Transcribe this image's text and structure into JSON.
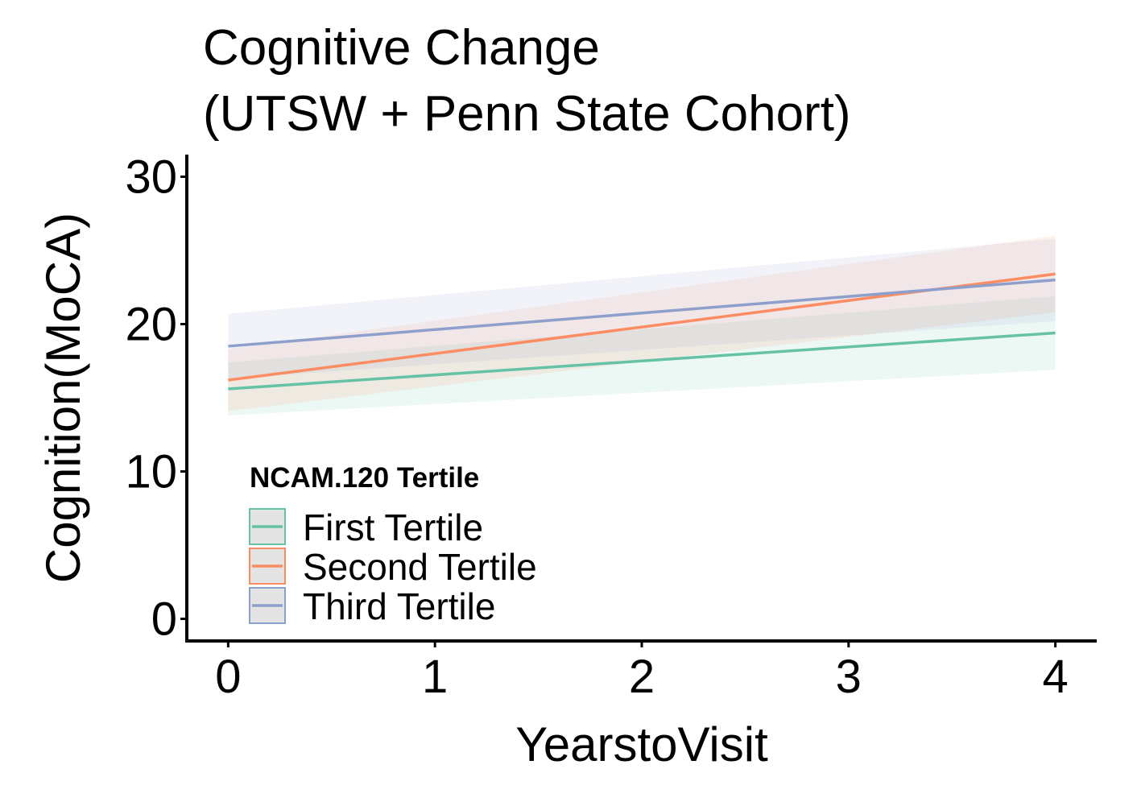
{
  "chart_data": {
    "type": "line",
    "title": [
      "Cognitive Change",
      "(UTSW + Penn State Cohort)"
    ],
    "xlabel": "YearstoVisit",
    "ylabel": "Cognition(MoCA)",
    "xlim": [
      -0.2,
      4.2
    ],
    "ylim": [
      -1.5,
      31.5
    ],
    "x_ticks": [
      0,
      1,
      2,
      3,
      4
    ],
    "y_ticks": [
      0,
      10,
      20,
      30
    ],
    "x_tick_labels": [
      "0",
      "1",
      "2",
      "3",
      "4"
    ],
    "y_tick_labels": [
      "0",
      "10",
      "20",
      "30"
    ],
    "grid": false,
    "legend": {
      "title": "NCAM.120 Tertile",
      "position": "bottom-left"
    },
    "series": [
      {
        "name": "First Tertile",
        "color": "#66c2a5",
        "fill_opacity": 0.12,
        "x": [
          0,
          4
        ],
        "y": [
          15.6,
          19.4
        ],
        "ci_lower": [
          13.8,
          16.9
        ],
        "ci_upper": [
          17.4,
          21.9
        ]
      },
      {
        "name": "Second Tertile",
        "color": "#fc8d62",
        "fill_opacity": 0.12,
        "x": [
          0,
          4
        ],
        "y": [
          16.2,
          23.4
        ],
        "ci_lower": [
          14.1,
          20.8
        ],
        "ci_upper": [
          18.3,
          26.0
        ]
      },
      {
        "name": "Third Tertile",
        "color": "#8da0cb",
        "fill_opacity": 0.12,
        "x": [
          0,
          4
        ],
        "y": [
          18.5,
          23.0
        ],
        "ci_lower": [
          16.3,
          20.2
        ],
        "ci_upper": [
          20.7,
          25.8
        ]
      }
    ]
  }
}
